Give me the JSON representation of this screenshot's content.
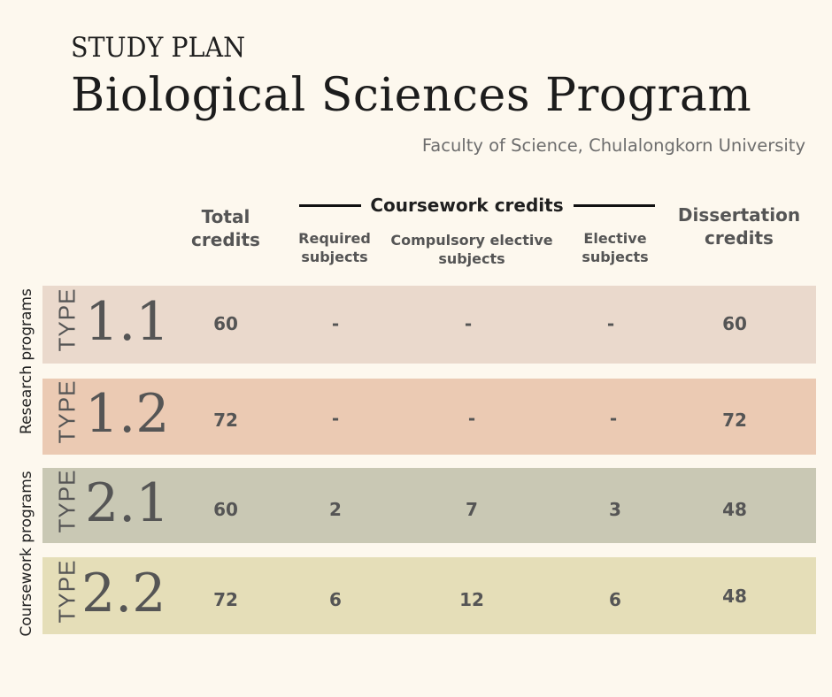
{
  "header": {
    "kicker": "STUDY PLAN",
    "title": "Biological Sciences Program",
    "subtitle": "Faculty of Science, Chulalongkorn University"
  },
  "columns": {
    "total": "Total credits",
    "coursework_group": "Coursework credits",
    "required": "Required subjects",
    "compulsory_elective": "Compulsory elective subjects",
    "elective": "Elective subjects",
    "dissertation": "Dissertation credits"
  },
  "groups": {
    "research": "Research programs",
    "coursework": "Coursework programs"
  },
  "rows": [
    {
      "type_word": "TYPE",
      "type_num": "1.1",
      "total": "60",
      "required": "-",
      "compulsory_elective": "-",
      "elective": "-",
      "dissertation": "60",
      "color": "#ead9cc"
    },
    {
      "type_word": "TYPE",
      "type_num": "1.2",
      "total": "72",
      "required": "-",
      "compulsory_elective": "-",
      "elective": "-",
      "dissertation": "72",
      "color": "#ebcab3"
    },
    {
      "type_word": "TYPE",
      "type_num": "2.1",
      "total": "60",
      "required": "2",
      "compulsory_elective": "7",
      "elective": "3",
      "dissertation": "48",
      "color": "#c9c8b4"
    },
    {
      "type_word": "TYPE",
      "type_num": "2.2",
      "total": "72",
      "required": "6",
      "compulsory_elective": "12",
      "elective": "6",
      "dissertation": "48",
      "color": "#e5deb8"
    }
  ]
}
